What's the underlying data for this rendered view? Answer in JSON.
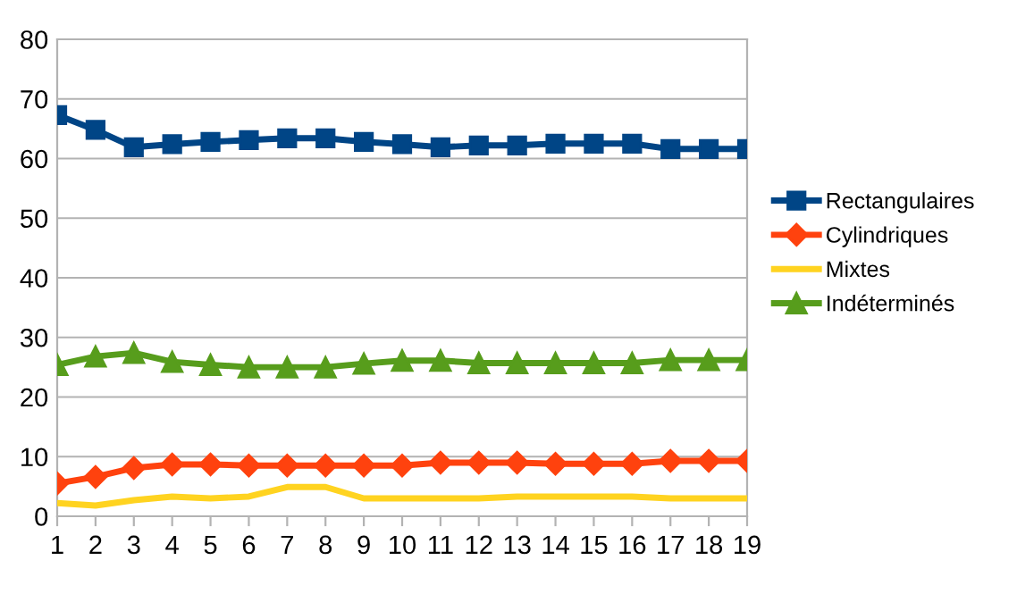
{
  "chart_data": {
    "type": "line",
    "categories": [
      "1",
      "2",
      "3",
      "4",
      "5",
      "6",
      "7",
      "8",
      "9",
      "10",
      "11",
      "12",
      "13",
      "14",
      "15",
      "16",
      "17",
      "18",
      "19"
    ],
    "series": [
      {
        "name": "Rectangulaires",
        "color": "#004586",
        "marker": "square",
        "values": [
          67.3,
          64.8,
          61.9,
          62.4,
          62.8,
          63.1,
          63.4,
          63.4,
          62.8,
          62.4,
          61.9,
          62.2,
          62.2,
          62.5,
          62.5,
          62.5,
          61.6,
          61.6,
          61.6
        ]
      },
      {
        "name": "Cylindriques",
        "color": "#ff420e",
        "marker": "diamond",
        "values": [
          5.5,
          6.6,
          8.1,
          8.7,
          8.7,
          8.5,
          8.5,
          8.5,
          8.5,
          8.5,
          9.0,
          9.0,
          9.0,
          8.8,
          8.8,
          8.8,
          9.3,
          9.3,
          9.3
        ]
      },
      {
        "name": "Mixtes",
        "color": "#ffd320",
        "marker": "none",
        "values": [
          2.2,
          1.8,
          2.7,
          3.3,
          3.0,
          3.3,
          4.9,
          4.9,
          3.0,
          3.0,
          3.0,
          3.0,
          3.3,
          3.3,
          3.3,
          3.3,
          3.0,
          3.0,
          3.0
        ]
      },
      {
        "name": "Indéterminés",
        "color": "#579d1c",
        "marker": "triangle",
        "values": [
          25.4,
          26.8,
          27.4,
          25.9,
          25.4,
          25.0,
          25.0,
          25.0,
          25.6,
          26.1,
          26.1,
          25.7,
          25.7,
          25.7,
          25.7,
          25.7,
          26.2,
          26.2,
          26.2
        ]
      }
    ],
    "ylim": [
      0,
      80
    ],
    "yticks": [
      0,
      10,
      20,
      30,
      40,
      50,
      60,
      70,
      80
    ],
    "grid": "y",
    "legend": "right",
    "line_style": "solid"
  }
}
